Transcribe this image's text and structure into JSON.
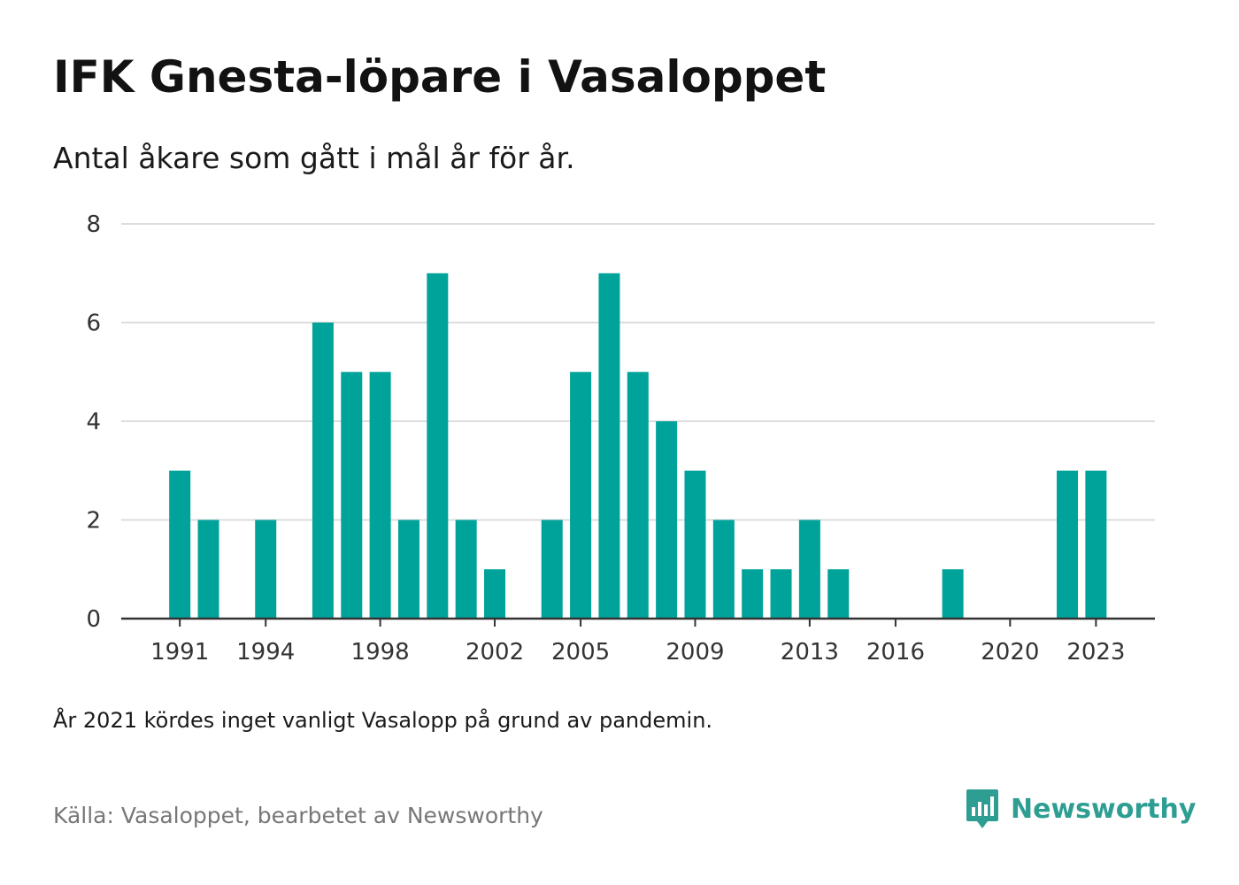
{
  "header": {
    "title": "IFK Gnesta-löpare i Vasaloppet",
    "subtitle": "Antal åkare som gått i mål år för år."
  },
  "footer": {
    "note": "År 2021 kördes inget vanligt Vasalopp på grund av pandemin.",
    "source": "Källa: Vasaloppet, bearbetet av Newsworthy",
    "brand": "Newsworthy",
    "brand_icon": "newsworthy-logo-icon"
  },
  "colors": {
    "bar": "#00a39a",
    "grid": "#dddddd",
    "axis": "#333333",
    "brand": "#2e9e93"
  },
  "chart_data": {
    "type": "bar",
    "title": "IFK Gnesta-löpare i Vasaloppet",
    "subtitle": "Antal åkare som gått i mål år för år.",
    "xlabel": "",
    "ylabel": "",
    "x": [
      1991,
      1992,
      1993,
      1994,
      1995,
      1996,
      1997,
      1998,
      1999,
      2000,
      2001,
      2002,
      2003,
      2004,
      2005,
      2006,
      2007,
      2008,
      2009,
      2010,
      2011,
      2012,
      2013,
      2014,
      2015,
      2016,
      2017,
      2018,
      2019,
      2020,
      2021,
      2022,
      2023
    ],
    "values": [
      3,
      2,
      0,
      2,
      0,
      6,
      5,
      5,
      2,
      7,
      2,
      1,
      0,
      2,
      5,
      7,
      5,
      4,
      3,
      2,
      1,
      1,
      2,
      1,
      0,
      0,
      0,
      1,
      0,
      0,
      0,
      3,
      3
    ],
    "ylim": [
      0,
      8
    ],
    "yticks": [
      0,
      2,
      4,
      6,
      8
    ],
    "xticks": [
      1991,
      1994,
      1998,
      2002,
      2005,
      2009,
      2013,
      2016,
      2020,
      2023
    ],
    "grid": true,
    "legend": "none"
  }
}
